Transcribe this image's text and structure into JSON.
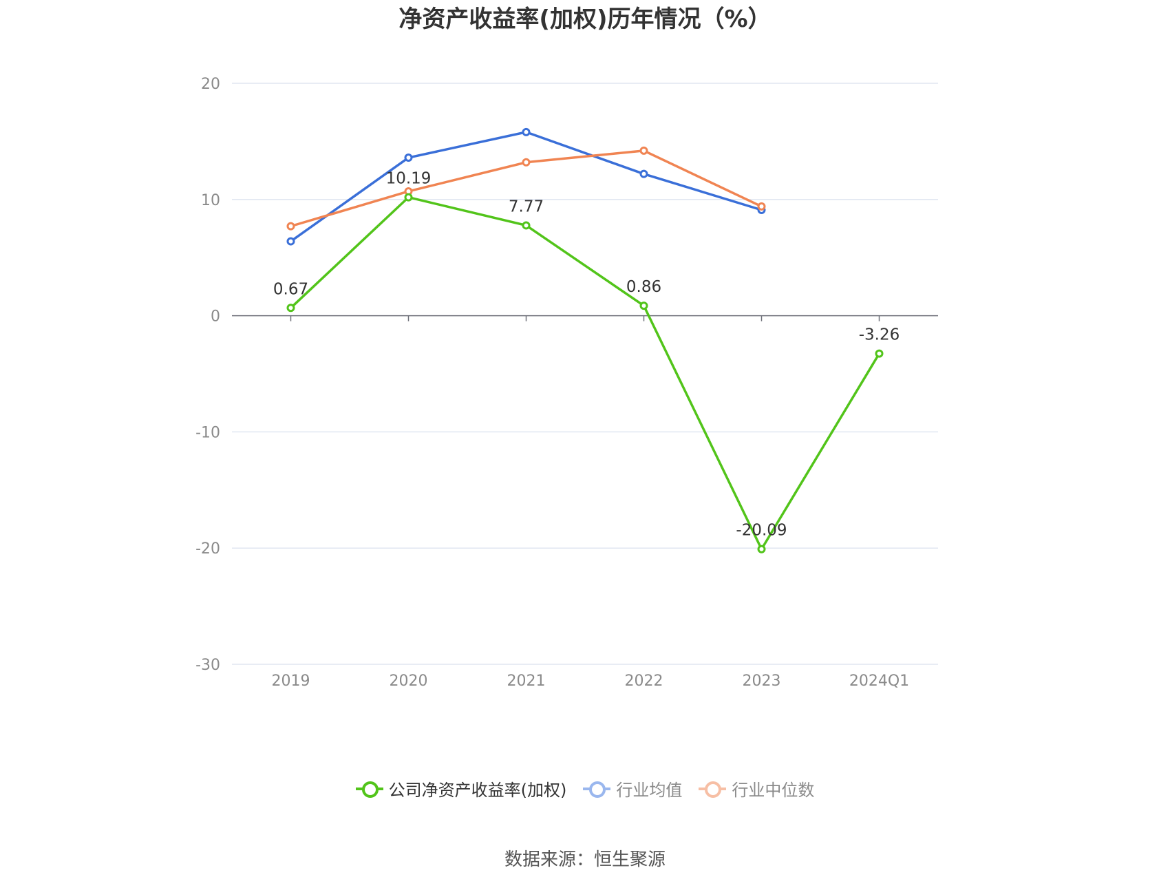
{
  "chart_data": {
    "type": "line",
    "title": "净资产收益率(加权)历年情况（%）",
    "categories": [
      "2019",
      "2020",
      "2021",
      "2022",
      "2023",
      "2024Q1"
    ],
    "ylim": [
      -30,
      20
    ],
    "yticks": [
      20,
      10,
      0,
      -10,
      -20,
      -30
    ],
    "grid": true,
    "legend_position": "bottom",
    "series": [
      {
        "name": "公司净资产收益率(加权)",
        "color": "#52c41a",
        "labeled": true,
        "values": [
          0.67,
          10.19,
          7.77,
          0.86,
          -20.09,
          -3.26
        ],
        "labels": [
          "0.67",
          "10.19",
          "7.77",
          "0.86",
          "-20.09",
          "-3.26"
        ]
      },
      {
        "name": "行业均值",
        "color": "#3a6fd8",
        "labeled": false,
        "values": [
          6.4,
          13.6,
          15.8,
          12.2,
          9.1,
          null
        ]
      },
      {
        "name": "行业中位数",
        "color": "#f08452",
        "labeled": false,
        "values": [
          7.7,
          10.7,
          13.2,
          14.2,
          9.4,
          null
        ]
      }
    ],
    "legend": [
      {
        "name": "公司净资产收益率(加权)",
        "color": "#52c41a",
        "text_color": "#333333"
      },
      {
        "name": "行业均值",
        "color": "#9ab7ee",
        "text_color": "#8a8a8a"
      },
      {
        "name": "行业中位数",
        "color": "#f7bfa5",
        "text_color": "#8a8a8a"
      }
    ]
  },
  "source": "数据来源：恒生聚源"
}
